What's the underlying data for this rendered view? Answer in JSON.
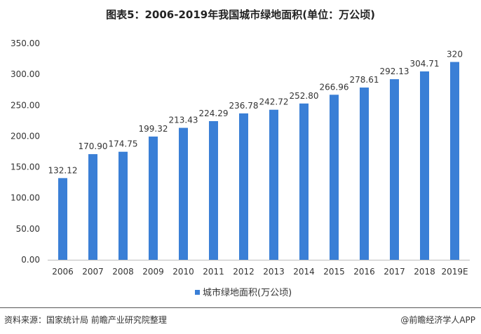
{
  "title": "图表5：2006-2019年我国城市绿地面积(单位：万公顷)",
  "source": "资料来源：国家统计局 前瞻产业研究院整理",
  "brand": "@前瞻经济学人APP",
  "chart_data": {
    "type": "bar",
    "title": "图表5：2006-2019年我国城市绿地面积(单位：万公顷)",
    "categories": [
      "2006",
      "2007",
      "2008",
      "2009",
      "2010",
      "2011",
      "2012",
      "2013",
      "2014",
      "2015",
      "2016",
      "2017",
      "2018",
      "2019E"
    ],
    "series": [
      {
        "name": "城市绿地面积(万公顷)",
        "values": [
          132.12,
          170.9,
          174.75,
          199.32,
          213.43,
          224.29,
          236.78,
          242.72,
          252.8,
          266.96,
          278.61,
          292.13,
          304.71,
          320
        ],
        "labels": [
          "132.12",
          "170.90",
          "174.75",
          "199.32",
          "213.43",
          "224.29",
          "236.78",
          "242.72",
          "252.80",
          "266.96",
          "278.61",
          "292.13",
          "304.71",
          "320"
        ],
        "color": "#3a7fd6"
      }
    ],
    "yticks": [
      "0.00",
      "50.00",
      "100.00",
      "150.00",
      "200.00",
      "250.00",
      "300.00",
      "350.00"
    ],
    "ylim": [
      0,
      350
    ],
    "grid": false,
    "legend": "bottom-center"
  }
}
